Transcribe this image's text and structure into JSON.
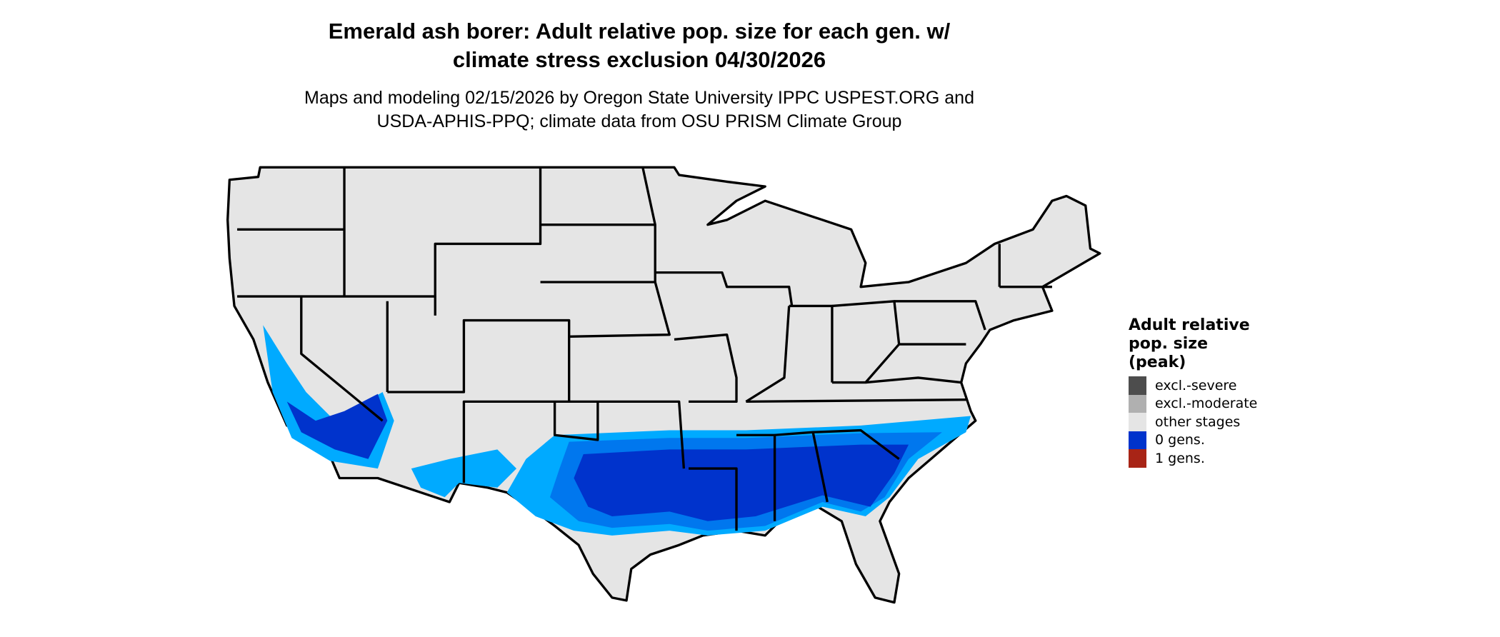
{
  "title": {
    "line1": "Emerald ash borer: Adult relative pop. size for each gen. w/",
    "line2": "climate stress exclusion 04/30/2026"
  },
  "subtitle": {
    "line1": "Maps and modeling 02/15/2026 by Oregon State University IPPC USPEST.ORG and",
    "line2": "USDA-APHIS-PPQ; climate data from OSU PRISM Climate Group"
  },
  "legend": {
    "title_lines": [
      "Adult relative",
      "pop. size",
      "(peak)"
    ],
    "items": [
      {
        "label": "excl.-severe",
        "color": "#4d4d4d"
      },
      {
        "label": "excl.-moderate",
        "color": "#b0b0b0"
      },
      {
        "label": "other stages",
        "color": "#e5e5e5"
      },
      {
        "label": "0 gens.",
        "color": "#0033cc"
      },
      {
        "label": "1 gens.",
        "color": "#a82416"
      }
    ]
  },
  "map": {
    "base_color": "#e5e5e5",
    "light_blue": "#00aaff",
    "mid_blue": "#0077ee",
    "dark_blue": "#0033cc",
    "border_color": "#000000"
  }
}
